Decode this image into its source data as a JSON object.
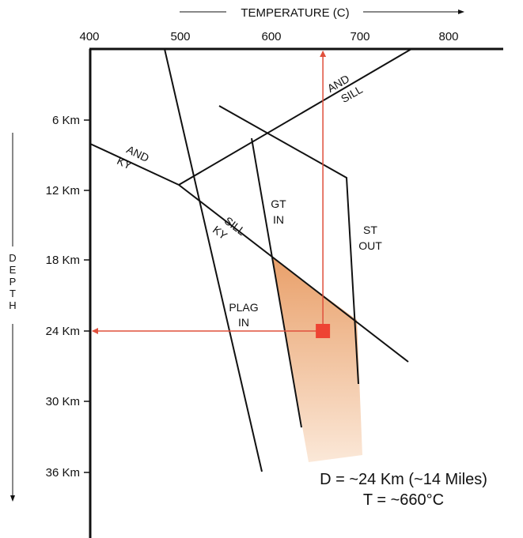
{
  "axes": {
    "temperature_title": "TEMPERATURE (C)",
    "depth_title": "DEPTH",
    "depth_letters": [
      "D",
      "E",
      "P",
      "T",
      "H"
    ],
    "temperature_ticks": [
      "400",
      "500",
      "600",
      "700",
      "800"
    ],
    "depth_ticks": [
      "6 Km",
      "12 Km",
      "18 Km",
      "24 Km",
      "30 Km",
      "36 Km"
    ]
  },
  "boundaries": {
    "and_sill": [
      "AND",
      "SILL"
    ],
    "and_ky": [
      "AND",
      "KY"
    ],
    "sill_ky": [
      "SILL",
      "KY"
    ],
    "gt_in": [
      "GT",
      "IN"
    ],
    "st_out": [
      "ST",
      "OUT"
    ],
    "plag_in": [
      "PLAG",
      "IN"
    ]
  },
  "estimate": {
    "temperature_c": 660,
    "depth_km": 24
  },
  "result": {
    "depth_line": "D = ~24 Km (~14 Miles)",
    "temperature_line": "T = ~660°C"
  },
  "colors": {
    "axis": "#111111",
    "line": "#111111",
    "marker": "#ee4433",
    "arrow": "#e0503c",
    "zone_top": "#e9a06a",
    "zone_bottom": "#fbe8d8"
  }
}
